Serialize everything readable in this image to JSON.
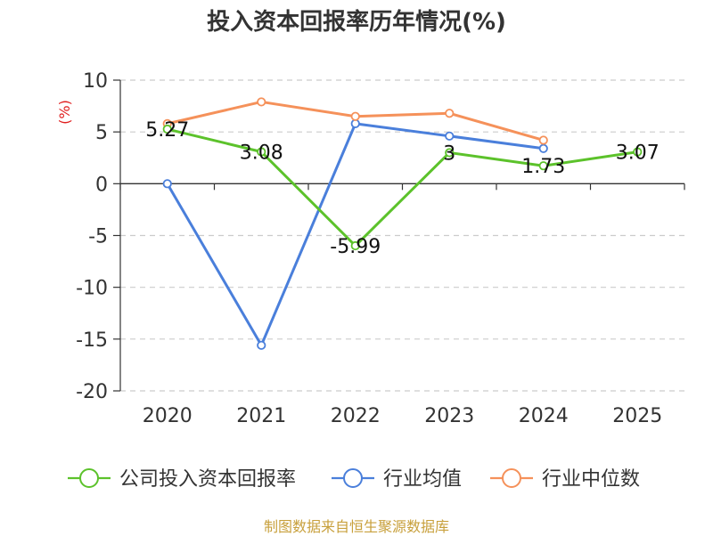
{
  "title": "投入资本回报率历年情况(%)",
  "source": "制图数据来自恒生聚源数据库",
  "chart_data": {
    "type": "line",
    "categories": [
      "2020",
      "2021",
      "2022",
      "2023",
      "2024",
      "2025"
    ],
    "yunit": "(%)",
    "ylim": [
      -20,
      10
    ],
    "yticks": [
      10,
      5,
      0,
      -5,
      -10,
      -15,
      -20
    ],
    "grid": true,
    "legend_position": "bottom",
    "series": [
      {
        "name": "公司投入资本回报率",
        "color": "#5cc22b",
        "values": [
          5.27,
          3.08,
          -5.99,
          3,
          1.73,
          3.07
        ],
        "labels": [
          "5.27",
          "3.08",
          "-5.99",
          "3",
          "1.73",
          "3.07"
        ]
      },
      {
        "name": "行业均值",
        "color": "#4a7fdb",
        "values": [
          0,
          -15.6,
          5.8,
          4.6,
          3.4,
          null
        ]
      },
      {
        "name": "行业中位数",
        "color": "#f5915a",
        "values": [
          5.8,
          7.9,
          6.5,
          6.8,
          4.2,
          null
        ]
      }
    ]
  }
}
